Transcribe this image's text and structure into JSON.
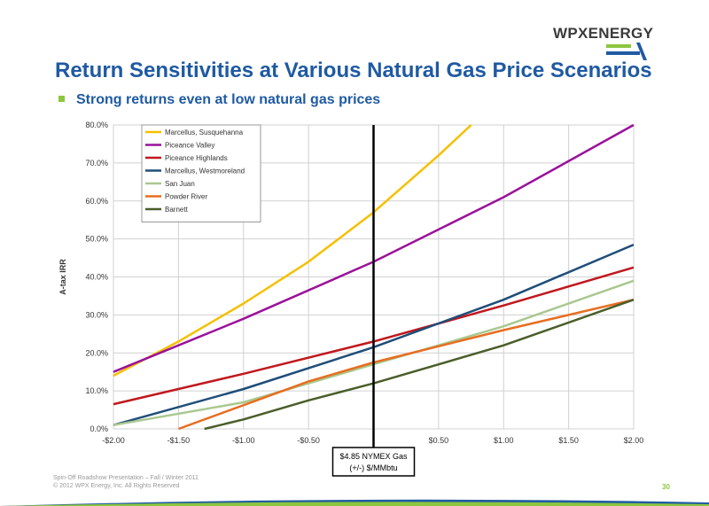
{
  "brand": {
    "logo_text": "WPXENERGY",
    "colors": {
      "title": "#1f5aa3",
      "bullet": "#8cc63f"
    }
  },
  "header": {
    "title": "Return Sensitivities at Various Natural Gas Price Scenarios",
    "bullet": "Strong returns even at low natural gas prices"
  },
  "footer": {
    "line1": "Spin-Off Roadshow Presentation – Fall / Winter 2011",
    "line2": "© 2012 WPX Energy, Inc. All Rights Reserved",
    "page": "30"
  },
  "chart_data": {
    "type": "line",
    "title": "",
    "ylabel": "A-tax IRR",
    "xlabel": "",
    "xlim": [
      -2.0,
      2.0
    ],
    "ylim": [
      0,
      80
    ],
    "x_ticks": [
      -2.0,
      -1.5,
      -1.0,
      -0.5,
      0.0,
      0.5,
      1.0,
      1.5,
      2.0
    ],
    "x_tick_labels": [
      "-$2.00",
      "-$1.50",
      "-$1.00",
      "-$0.50",
      "",
      "$0.50",
      "$1.00",
      "$1.50",
      "$2.00"
    ],
    "y_ticks": [
      0,
      10,
      20,
      30,
      40,
      50,
      60,
      70,
      80
    ],
    "y_tick_labels": [
      "0.0%",
      "10.0%",
      "20.0%",
      "30.0%",
      "40.0%",
      "50.0%",
      "60.0%",
      "70.0%",
      "80.0%"
    ],
    "grid": true,
    "legend_position": "top-left",
    "reference_line": {
      "x": 0.0,
      "label_line1": "$4.85 NYMEX Gas",
      "label_line2": "(+/-) $/MMbtu"
    },
    "series": [
      {
        "name": "Marcellus, Susquehanna",
        "color": "#f5c000",
        "points": [
          [
            -2.0,
            14
          ],
          [
            -1.5,
            23
          ],
          [
            -1.0,
            33
          ],
          [
            -0.5,
            44
          ],
          [
            0.0,
            57
          ],
          [
            0.5,
            72
          ],
          [
            0.75,
            80
          ]
        ]
      },
      {
        "name": "Piceance Valley",
        "color": "#9b119b",
        "points": [
          [
            -2.0,
            15
          ],
          [
            -1.0,
            29
          ],
          [
            0.0,
            44
          ],
          [
            1.0,
            61
          ],
          [
            2.0,
            80
          ]
        ]
      },
      {
        "name": "Piceance Highlands",
        "color": "#c0181e",
        "points": [
          [
            -2.0,
            6.5
          ],
          [
            -1.0,
            14.5
          ],
          [
            0.0,
            23
          ],
          [
            1.0,
            32.5
          ],
          [
            2.0,
            42.5
          ]
        ]
      },
      {
        "name": "Marcellus, Westmoreland",
        "color": "#1f4e79",
        "points": [
          [
            -2.0,
            1
          ],
          [
            -1.0,
            10.5
          ],
          [
            0.0,
            21.5
          ],
          [
            1.0,
            34
          ],
          [
            2.0,
            48.5
          ]
        ]
      },
      {
        "name": "San Juan",
        "color": "#a9c88f",
        "points": [
          [
            -2.0,
            1
          ],
          [
            -1.0,
            7
          ],
          [
            0.0,
            17
          ],
          [
            1.0,
            27
          ],
          [
            2.0,
            39
          ]
        ]
      },
      {
        "name": "Powder River",
        "color": "#e86d1f",
        "points": [
          [
            -1.5,
            0
          ],
          [
            -0.5,
            12.5
          ],
          [
            0.0,
            17.5
          ],
          [
            1.0,
            26
          ],
          [
            2.0,
            34
          ]
        ]
      },
      {
        "name": "Barnett",
        "color": "#4a5e2a",
        "points": [
          [
            -1.3,
            0
          ],
          [
            -1.0,
            2.5
          ],
          [
            -0.5,
            7.5
          ],
          [
            0.0,
            12
          ],
          [
            1.0,
            22
          ],
          [
            2.0,
            34
          ]
        ]
      }
    ]
  }
}
